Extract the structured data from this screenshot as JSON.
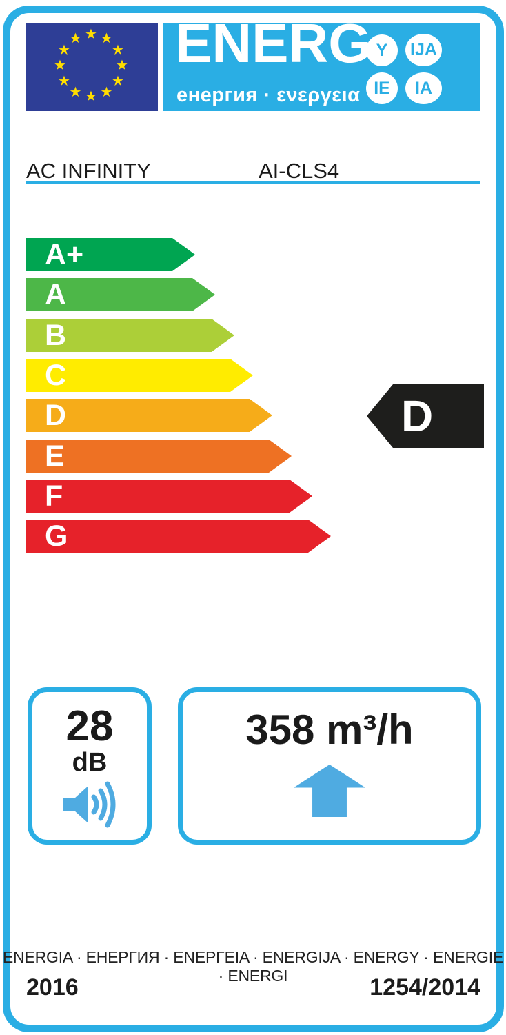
{
  "colors": {
    "cyan": "#2aaee4",
    "eu_blue": "#2e3e96",
    "star_yellow": "#ffdd00",
    "marker_black": "#1e1e1c",
    "icon_blue": "#4fabe1"
  },
  "header": {
    "title": "ENERG",
    "subtitle": "енергия · ενεργεια",
    "bubbles": [
      "Y",
      "IJA",
      "IE",
      "IA"
    ],
    "eu_star_count": 12
  },
  "product": {
    "brand": "AC INFINITY",
    "model": "AI-CLS4"
  },
  "rating": {
    "selected": "D",
    "classes": [
      {
        "label": "A+",
        "color": "#00a551",
        "tip": 283
      },
      {
        "label": "A",
        "color": "#4db748",
        "tip": 312
      },
      {
        "label": "B",
        "color": "#accf38",
        "tip": 340
      },
      {
        "label": "C",
        "color": "#ffec00",
        "tip": 367
      },
      {
        "label": "D",
        "color": "#f6ac19",
        "tip": 395
      },
      {
        "label": "E",
        "color": "#ee7123",
        "tip": 423
      },
      {
        "label": "F",
        "color": "#e6222a",
        "tip": 453
      },
      {
        "label": "G",
        "color": "#e6222a",
        "tip": 480
      }
    ]
  },
  "metrics": {
    "noise_value": "28",
    "noise_unit": "dB",
    "airflow_value": "358 m³/h"
  },
  "footer": {
    "energy_words": "ENERGIA · ЕНЕРГИЯ · ΕΝΕΡΓΕΙΑ · ENERGIJA · ENERGY · ENERGIE · ENERGI",
    "year": "2016",
    "regulation": "1254/2014"
  }
}
